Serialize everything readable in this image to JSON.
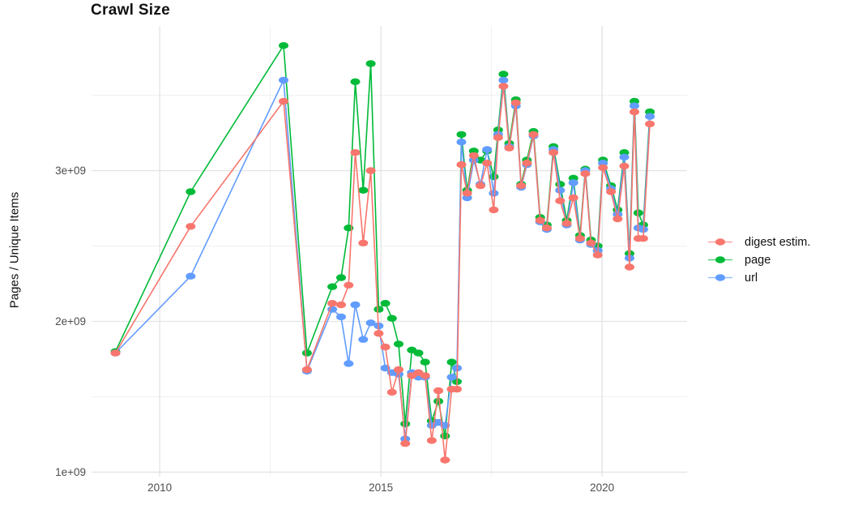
{
  "title": "Crawl Size",
  "y_axis_label": "Pages / Unique Items",
  "legend": {
    "position": "right",
    "items": [
      {
        "label": "digest estim.",
        "color": "#F8766D"
      },
      {
        "label": "page",
        "color": "#00BA38"
      },
      {
        "label": "url",
        "color": "#619CFF"
      }
    ]
  },
  "chart_data": {
    "type": "line",
    "title": "Crawl Size",
    "xlabel": "",
    "ylabel": "Pages / Unique Items",
    "y_unit": "1e9 items (values below are in billions)",
    "x_unit": "crawl date (decimal year)",
    "grid": "major+minor",
    "legend_position": "right",
    "xlim": [
      2008.46,
      2021.92
    ],
    "ylim": [
      0.97,
      3.96
    ],
    "x_ticks": [
      {
        "year": 2010,
        "label": "2010"
      },
      {
        "year": 2015,
        "label": "2015"
      },
      {
        "year": 2020,
        "label": "2020"
      }
    ],
    "x_minor_ticks": [
      2012.5,
      2017.5
    ],
    "y_ticks": [
      {
        "value": 1,
        "label": "1e+09"
      },
      {
        "value": 2,
        "label": "2e+09"
      },
      {
        "value": 3,
        "label": "3e+09"
      }
    ],
    "y_minor_ticks": [
      1.5,
      2.5,
      3.5
    ],
    "x": [
      2009.0,
      2010.7,
      2012.8,
      2013.33,
      2013.9,
      2014.1,
      2014.27,
      2014.42,
      2014.6,
      2014.77,
      2014.95,
      2015.1,
      2015.25,
      2015.4,
      2015.55,
      2015.7,
      2015.85,
      2016.0,
      2016.15,
      2016.3,
      2016.45,
      2016.6,
      2016.72,
      2016.82,
      2016.95,
      2017.1,
      2017.25,
      2017.4,
      2017.55,
      2017.65,
      2017.77,
      2017.9,
      2018.05,
      2018.17,
      2018.3,
      2018.45,
      2018.6,
      2018.75,
      2018.9,
      2019.05,
      2019.2,
      2019.35,
      2019.5,
      2019.62,
      2019.75,
      2019.9,
      2020.02,
      2020.2,
      2020.35,
      2020.5,
      2020.62,
      2020.73,
      2020.82,
      2020.93,
      2021.08
    ],
    "series": [
      {
        "name": "digest estim.",
        "color": "#F8766D",
        "values": [
          1.79,
          2.63,
          3.46,
          1.68,
          2.12,
          2.11,
          2.24,
          3.12,
          2.52,
          3.0,
          1.92,
          1.83,
          1.53,
          1.68,
          1.19,
          1.64,
          1.66,
          1.64,
          1.21,
          1.54,
          1.08,
          1.55,
          1.55,
          3.04,
          2.85,
          3.1,
          2.9,
          3.05,
          2.74,
          3.22,
          3.56,
          3.15,
          3.45,
          2.9,
          3.05,
          3.24,
          2.67,
          2.62,
          3.12,
          2.8,
          2.65,
          2.82,
          2.55,
          2.98,
          2.52,
          2.44,
          3.02,
          2.86,
          2.68,
          3.03,
          2.36,
          3.39,
          2.55,
          2.55,
          3.31
        ]
      },
      {
        "name": "page",
        "color": "#00BA38",
        "values": [
          1.8,
          2.86,
          3.83,
          1.79,
          2.23,
          2.29,
          2.62,
          3.59,
          2.87,
          3.71,
          2.08,
          2.12,
          2.02,
          1.85,
          1.32,
          1.81,
          1.79,
          1.73,
          1.34,
          1.47,
          1.24,
          1.73,
          1.6,
          3.24,
          2.87,
          3.13,
          3.07,
          3.13,
          2.96,
          3.27,
          3.64,
          3.18,
          3.47,
          2.91,
          3.07,
          3.26,
          2.69,
          2.64,
          3.16,
          2.91,
          2.67,
          2.95,
          2.57,
          3.01,
          2.54,
          2.5,
          3.07,
          2.9,
          2.74,
          3.12,
          2.45,
          3.46,
          2.72,
          2.64,
          3.39
        ]
      },
      {
        "name": "url",
        "color": "#619CFF",
        "values": [
          1.79,
          2.3,
          3.6,
          1.67,
          2.08,
          2.03,
          1.72,
          2.11,
          1.88,
          1.99,
          1.97,
          1.69,
          1.66,
          1.65,
          1.22,
          1.66,
          1.63,
          1.63,
          1.31,
          1.33,
          1.31,
          1.63,
          1.69,
          3.19,
          2.82,
          3.07,
          2.91,
          3.14,
          2.85,
          3.24,
          3.6,
          3.16,
          3.43,
          2.89,
          3.04,
          3.23,
          2.66,
          2.61,
          3.14,
          2.87,
          2.64,
          2.92,
          2.54,
          3.0,
          2.51,
          2.47,
          3.05,
          2.88,
          2.71,
          3.09,
          2.42,
          3.43,
          2.62,
          2.61,
          3.36
        ]
      }
    ]
  },
  "style": {
    "grid_major_color": "#e3e3e3",
    "grid_minor_color": "#efefef",
    "tick_label_color": "#4d4d4d",
    "panel_background": "#ffffff"
  }
}
